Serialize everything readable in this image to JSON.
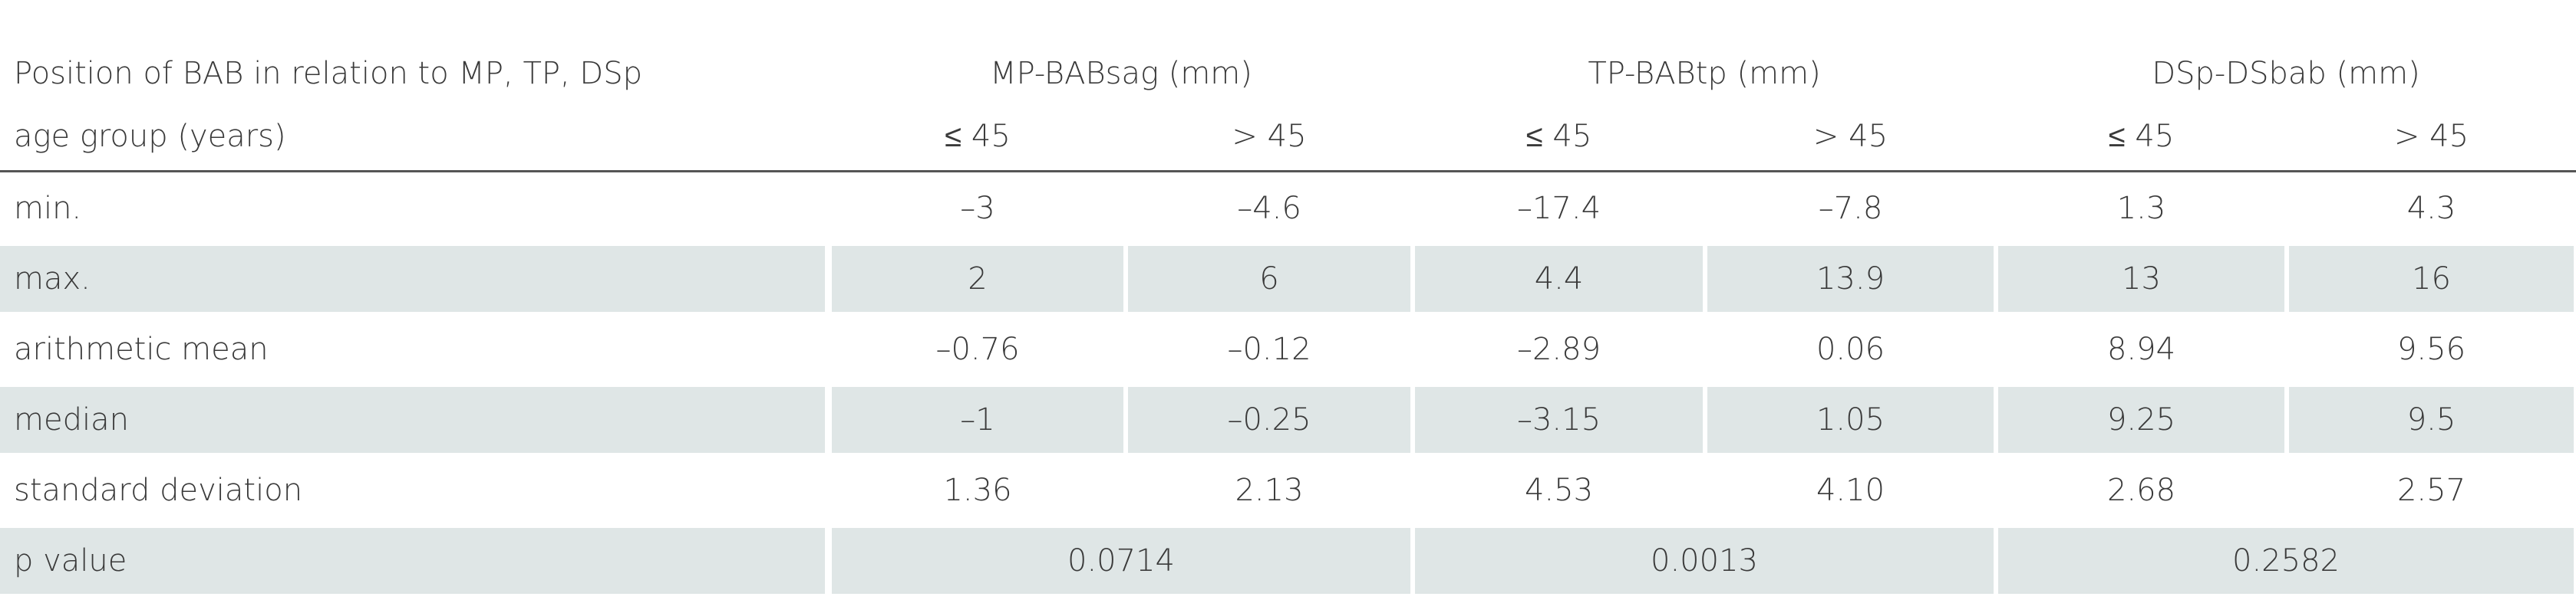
{
  "header": {
    "title": "Position of BAB in relation to MP, TP, DSp",
    "subtitle": "age group (years)",
    "groups": [
      "MP-BABsag (mm)",
      "TP-BABtp (mm)",
      "DSp-DSbab (mm)"
    ],
    "subgroups": [
      "≤ 45",
      "> 45",
      "≤ 45",
      "> 45",
      "≤ 45",
      "> 45"
    ]
  },
  "table": {
    "rows": [
      {
        "label": "min.",
        "cells": [
          "–3",
          "–4.6",
          "–17.4",
          "–7.8",
          "1.3",
          "4.3"
        ]
      },
      {
        "label": "max.",
        "cells": [
          "2",
          "6",
          "4.4",
          "13.9",
          "13",
          "16"
        ]
      },
      {
        "label": "arithmetic mean",
        "cells": [
          "–0.76",
          "–0.12",
          "–2.89",
          "0.06",
          "8.94",
          "9.56"
        ]
      },
      {
        "label": "median",
        "cells": [
          "–1",
          "–0.25",
          "–3.15",
          "1.05",
          "9.25",
          "9.5"
        ]
      },
      {
        "label": "standard deviation",
        "cells": [
          "1.36",
          "2.13",
          "4.53",
          "4.10",
          "2.68",
          "2.57"
        ]
      }
    ],
    "p_value": {
      "label": "p value",
      "cells": [
        "0.0714",
        "0.0013",
        "0.2582"
      ]
    }
  }
}
